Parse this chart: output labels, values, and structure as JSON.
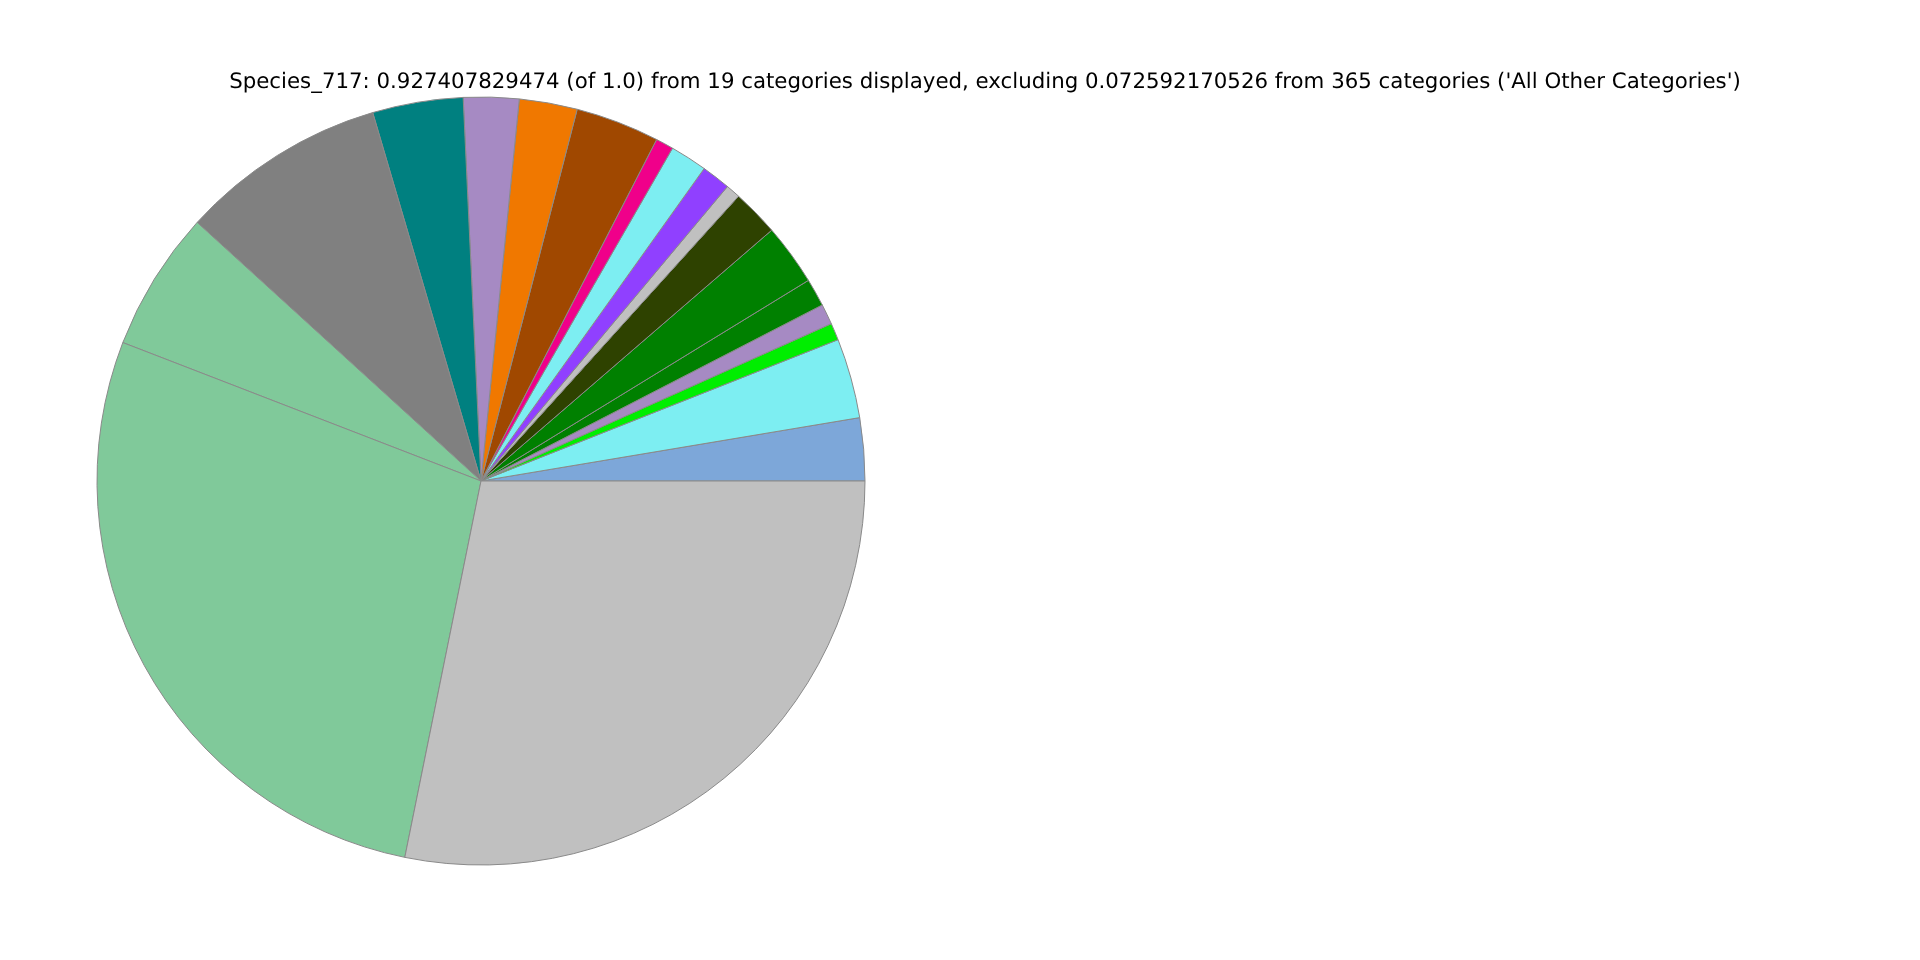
{
  "chart_data": {
    "type": "pie",
    "title": "Species_717: 0.927407829474 (of 1.0) from 19 categories displayed, excluding 0.072592170526 from 365 categories ('All Other Categories')",
    "categories": [
      null,
      null,
      null,
      null,
      null,
      null,
      null,
      null,
      null,
      null,
      null,
      null,
      null,
      null,
      null,
      null,
      null,
      null,
      null
    ],
    "values": [
      2.64,
      3.36,
      0.72,
      0.86,
      1.17,
      2.58,
      1.97,
      0.61,
      1.22,
      1.56,
      0.75,
      3.53,
      2.44,
      2.33,
      3.81,
      8.69,
      5.89,
      27.69,
      28.18
    ],
    "colors": [
      "#7da7d9",
      "#7deef2",
      "#00ee00",
      "#a68ac3",
      "#008000",
      "#008000",
      "#2e4200",
      "#c0c0c0",
      "#9040ff",
      "#7deef2",
      "#f0008a",
      "#a04800",
      "#f07800",
      "#a68ac3",
      "#008080",
      "#808080",
      "#80c99a",
      "#80c99a",
      "#c0c0c0"
    ]
  }
}
